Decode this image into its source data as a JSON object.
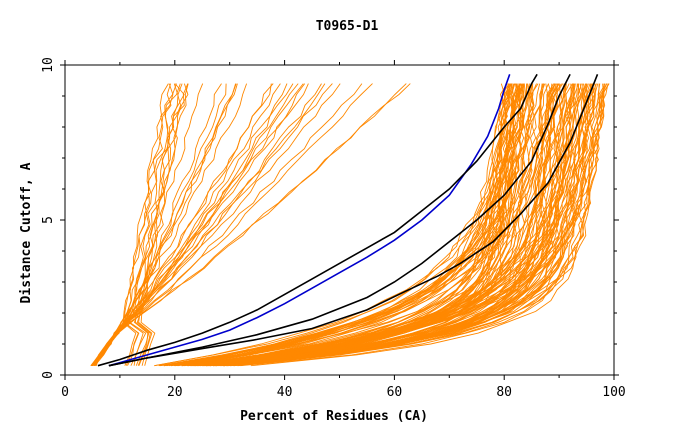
{
  "chart_data": {
    "type": "line",
    "title": "T0965-D1",
    "xlabel": "Percent of Residues (CA)",
    "ylabel": "Distance Cutoff, A",
    "xlim": [
      0,
      100
    ],
    "ylim": [
      0,
      10
    ],
    "x_ticks": [
      "0",
      "20",
      "40",
      "60",
      "80",
      "100"
    ],
    "y_ticks": [
      "0",
      "5",
      "10"
    ],
    "colors": {
      "background_models": "#ff8800",
      "highlight_black": "#000000",
      "highlight_blue": "#0000cc"
    },
    "highlight_series": [
      {
        "color": "#0000cc",
        "points": [
          [
            8,
            0.3
          ],
          [
            10,
            0.4
          ],
          [
            15,
            0.65
          ],
          [
            20,
            0.9
          ],
          [
            25,
            1.15
          ],
          [
            30,
            1.45
          ],
          [
            35,
            1.85
          ],
          [
            40,
            2.3
          ],
          [
            45,
            2.8
          ],
          [
            50,
            3.3
          ],
          [
            55,
            3.8
          ],
          [
            60,
            4.35
          ],
          [
            65,
            5.0
          ],
          [
            70,
            5.8
          ],
          [
            74,
            6.8
          ],
          [
            77,
            7.7
          ],
          [
            79,
            8.6
          ],
          [
            80,
            9.2
          ],
          [
            81,
            9.7
          ]
        ]
      },
      {
        "color": "#000000",
        "points": [
          [
            6,
            0.3
          ],
          [
            10,
            0.5
          ],
          [
            15,
            0.8
          ],
          [
            20,
            1.05
          ],
          [
            25,
            1.35
          ],
          [
            30,
            1.7
          ],
          [
            35,
            2.1
          ],
          [
            40,
            2.6
          ],
          [
            45,
            3.1
          ],
          [
            50,
            3.6
          ],
          [
            55,
            4.1
          ],
          [
            60,
            4.6
          ],
          [
            65,
            5.3
          ],
          [
            70,
            6.0
          ],
          [
            75,
            6.9
          ],
          [
            80,
            8.0
          ],
          [
            83,
            8.6
          ],
          [
            85,
            9.4
          ],
          [
            86,
            9.7
          ]
        ]
      },
      {
        "color": "#000000",
        "points": [
          [
            8,
            0.3
          ],
          [
            15,
            0.55
          ],
          [
            25,
            0.9
          ],
          [
            35,
            1.3
          ],
          [
            45,
            1.8
          ],
          [
            55,
            2.5
          ],
          [
            60,
            3.0
          ],
          [
            65,
            3.6
          ],
          [
            70,
            4.3
          ],
          [
            75,
            5.0
          ],
          [
            80,
            5.8
          ],
          [
            85,
            6.9
          ],
          [
            88,
            8.1
          ],
          [
            90,
            9.0
          ],
          [
            92,
            9.7
          ]
        ]
      },
      {
        "color": "#000000",
        "points": [
          [
            8,
            0.3
          ],
          [
            15,
            0.55
          ],
          [
            25,
            0.85
          ],
          [
            35,
            1.15
          ],
          [
            45,
            1.5
          ],
          [
            55,
            2.1
          ],
          [
            62,
            2.7
          ],
          [
            68,
            3.2
          ],
          [
            72,
            3.6
          ],
          [
            78,
            4.3
          ],
          [
            83,
            5.2
          ],
          [
            88,
            6.2
          ],
          [
            92,
            7.5
          ],
          [
            95,
            8.8
          ],
          [
            97,
            9.7
          ]
        ]
      }
    ]
  }
}
